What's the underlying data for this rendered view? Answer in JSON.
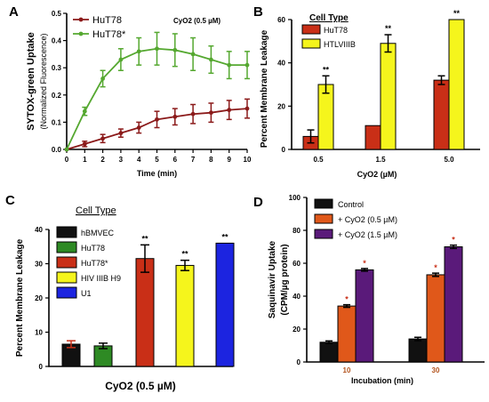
{
  "figure": {
    "image_width": 550,
    "image_height": 447
  },
  "chart_data": [
    {
      "panel": "A",
      "type": "line",
      "xlabel": "Time (min)",
      "ylabel": "SYTOX-green Uptake",
      "ylabel2": "(Normalized Fluorescence)",
      "annotation": "CyO2 (0.5 µM)",
      "xlim": [
        0,
        10
      ],
      "ylim": [
        0,
        0.5
      ],
      "xticks": [
        "0",
        "1",
        "2",
        "3",
        "4",
        "5",
        "6",
        "7",
        "8",
        "9",
        "10"
      ],
      "yticks": [
        "0.0",
        "0.1",
        "0.2",
        "0.3",
        "0.4",
        "0.5"
      ],
      "x": [
        0,
        1,
        2,
        3,
        4,
        5,
        6,
        7,
        8,
        9,
        10
      ],
      "legend_placement": "top-left",
      "series": [
        {
          "name": "HuT78",
          "color": "#8b1a1a",
          "values": [
            0,
            0.02,
            0.04,
            0.06,
            0.08,
            0.11,
            0.12,
            0.13,
            0.135,
            0.145,
            0.15
          ],
          "errors": [
            0,
            0.01,
            0.015,
            0.015,
            0.02,
            0.03,
            0.03,
            0.035,
            0.035,
            0.035,
            0.035
          ]
        },
        {
          "name": "HuT78*",
          "color": "#55a830",
          "values": [
            0,
            0.14,
            0.26,
            0.33,
            0.36,
            0.37,
            0.365,
            0.35,
            0.33,
            0.31,
            0.31
          ],
          "errors": [
            0,
            0.015,
            0.03,
            0.04,
            0.05,
            0.06,
            0.06,
            0.06,
            0.05,
            0.05,
            0.05
          ]
        }
      ]
    },
    {
      "panel": "B",
      "type": "bar",
      "title": "Cell Type",
      "xlabel": "CyO2 (µM)",
      "ylabel": "Percent Membrane Leakage",
      "ylim": [
        0,
        60
      ],
      "yticks": [
        "0",
        "20",
        "40",
        "60"
      ],
      "categories": [
        "0.5",
        "1.5",
        "5.0"
      ],
      "legend_placement": "top-left",
      "series": [
        {
          "name": "HuT78",
          "color": "#c92f17",
          "values": [
            6,
            11,
            32
          ],
          "errors": [
            3,
            0,
            2
          ],
          "labels": [
            "",
            "",
            ""
          ]
        },
        {
          "name": "HTLVIIIB",
          "color": "#f5f51c",
          "values": [
            30,
            49,
            60
          ],
          "errors": [
            4,
            4,
            0
          ],
          "labels": [
            "**",
            "**",
            "**"
          ]
        }
      ]
    },
    {
      "panel": "C",
      "type": "bar",
      "title": "Cell Type",
      "xlabel": "CyO2 (0.5 µM)",
      "ylabel": "Percent Membrane Leakage",
      "ylim": [
        0,
        40
      ],
      "yticks": [
        "0",
        "10",
        "20",
        "30",
        "40"
      ],
      "legend_placement": "top-left",
      "series": [
        {
          "name": "hBMVEC",
          "color": "#111111",
          "value": 6.5,
          "error": 1,
          "label": ""
        },
        {
          "name": "HuT78",
          "color": "#2e8a24",
          "value": 6,
          "error": 0.8,
          "label": ""
        },
        {
          "name": "HuT78*",
          "color": "#c92f17",
          "value": 31.5,
          "error": 4,
          "label": "**"
        },
        {
          "name": "HIV IIIB H9",
          "color": "#f5f51c",
          "value": 29.5,
          "error": 1.5,
          "label": "**"
        },
        {
          "name": "U1",
          "color": "#1c24e0",
          "value": 36,
          "error": 0,
          "label": "**"
        }
      ]
    },
    {
      "panel": "D",
      "type": "bar",
      "xlabel": "Incubation (min)",
      "ylabel": "Saquinavir Uptake",
      "ylabel2": "(CPM/µg protein)",
      "ylim": [
        0,
        100
      ],
      "yticks": [
        "0",
        "20",
        "40",
        "60",
        "80",
        "100"
      ],
      "categories": [
        "10",
        "30"
      ],
      "legend_placement": "top-left",
      "series": [
        {
          "name": "Control",
          "color": "#111111",
          "values": [
            12,
            14
          ],
          "errors": [
            0.8,
            1
          ],
          "labels": [
            "",
            ""
          ]
        },
        {
          "name": "+ CyO2 (0.5 µM)",
          "color": "#e0581a",
          "values": [
            34,
            53
          ],
          "errors": [
            0.8,
            1
          ],
          "labels": [
            "*",
            "*"
          ]
        },
        {
          "name": "+ CyO2 (1.5 µM)",
          "color": "#5a1a7a",
          "values": [
            56,
            70
          ],
          "errors": [
            0.8,
            1
          ],
          "labels": [
            "*",
            "*"
          ]
        }
      ]
    }
  ]
}
